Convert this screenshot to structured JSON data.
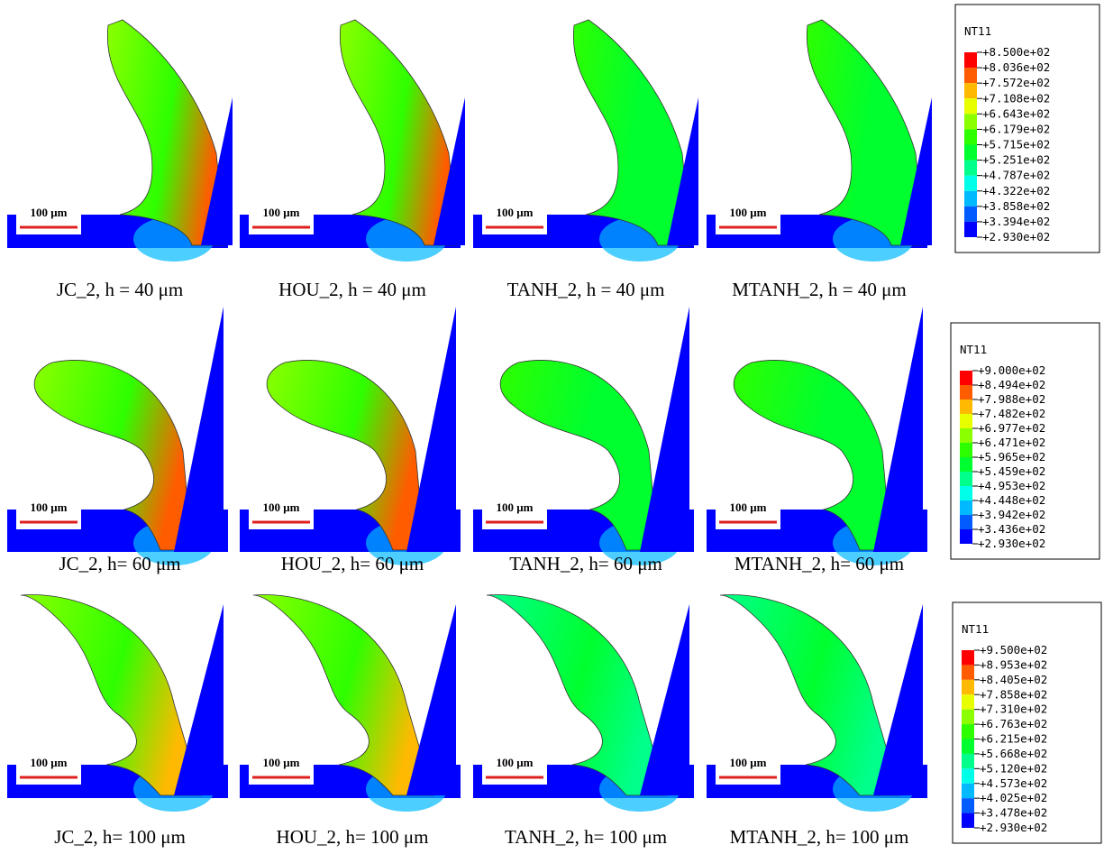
{
  "panels": [
    {
      "caption": "JC_2, h = 40 μm",
      "scale_bar": "100 μm"
    },
    {
      "caption": "HOU_2, h = 40 μm",
      "scale_bar": "100 μm"
    },
    {
      "caption": "TANH_2, h = 40 μm",
      "scale_bar": "100 μm"
    },
    {
      "caption": "MTANH_2, h = 40 μm",
      "scale_bar": "100 μm"
    },
    {
      "caption": "JC_2, h= 60 μm",
      "scale_bar": "100 μm"
    },
    {
      "caption": "HOU_2, h= 60 μm",
      "scale_bar": "100 μm"
    },
    {
      "caption": "TANH_2, h= 60 μm",
      "scale_bar": "100 μm"
    },
    {
      "caption": "MTANH_2, h= 60 μm",
      "scale_bar": "100 μm"
    },
    {
      "caption": "JC_2, h= 100 μm",
      "scale_bar": "100 μm"
    },
    {
      "caption": "HOU_2, h= 100 μm",
      "scale_bar": "100 μm"
    },
    {
      "caption": "TANH_2, h= 100 μm",
      "scale_bar": "100 μm"
    },
    {
      "caption": "MTANH_2, h= 100 μm",
      "scale_bar": "100 μm"
    }
  ],
  "legends": [
    {
      "title": "NT11",
      "values": [
        "+8.500e+02",
        "+8.036e+02",
        "+7.572e+02",
        "+7.108e+02",
        "+6.643e+02",
        "+6.179e+02",
        "+5.715e+02",
        "+5.251e+02",
        "+4.787e+02",
        "+4.322e+02",
        "+3.858e+02",
        "+3.394e+02",
        "+2.930e+02"
      ]
    },
    {
      "title": "NT11",
      "values": [
        "+9.000e+02",
        "+8.494e+02",
        "+7.988e+02",
        "+7.482e+02",
        "+6.977e+02",
        "+6.471e+02",
        "+5.965e+02",
        "+5.459e+02",
        "+4.953e+02",
        "+4.448e+02",
        "+3.942e+02",
        "+3.436e+02",
        "+2.930e+02"
      ]
    },
    {
      "title": "NT11",
      "values": [
        "+9.500e+02",
        "+8.953e+02",
        "+8.405e+02",
        "+7.858e+02",
        "+7.310e+02",
        "+6.763e+02",
        "+6.215e+02",
        "+5.668e+02",
        "+5.120e+02",
        "+4.573e+02",
        "+4.025e+02",
        "+3.478e+02",
        "+2.930e+02"
      ]
    }
  ],
  "legend_colors": [
    "#ff0000",
    "#ff5c00",
    "#ffb900",
    "#e8ff00",
    "#8bff00",
    "#2eff00",
    "#00ff2e",
    "#00ff8b",
    "#00ffe8",
    "#00b9ff",
    "#005cff",
    "#0000ff"
  ]
}
